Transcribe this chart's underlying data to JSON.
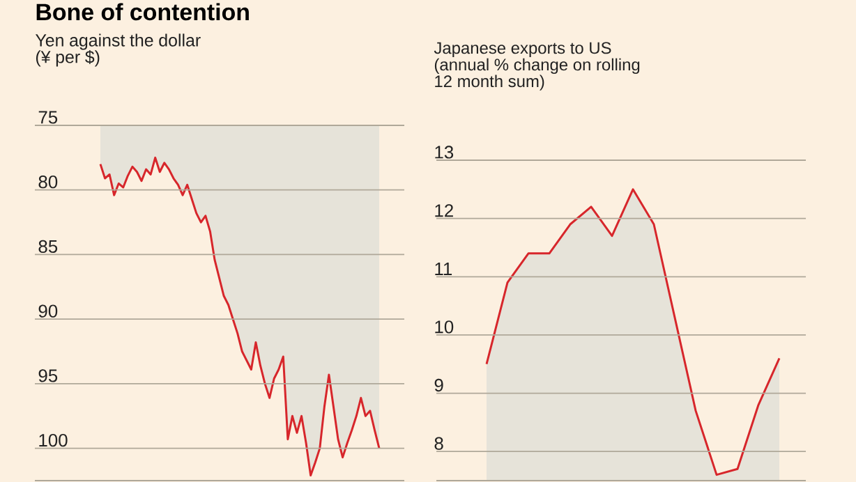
{
  "chart_data": [
    {
      "type": "area",
      "title": "Bone of contention",
      "subtitle": "Yen against the dollar (¥ per $)",
      "categories": [
        null,
        null,
        null,
        null,
        null,
        null,
        null,
        null,
        null,
        null,
        null,
        null,
        null,
        null,
        null,
        null,
        null,
        null,
        null,
        null,
        null,
        null,
        null,
        null,
        null,
        null,
        null,
        null,
        null,
        null,
        null,
        null,
        null,
        null,
        null,
        null,
        null,
        null,
        null,
        null,
        null,
        null,
        null,
        null,
        null,
        null,
        null,
        null,
        null,
        null,
        null,
        null,
        null,
        null,
        null,
        null,
        null,
        null,
        null,
        null,
        null,
        null
      ],
      "series": [
        {
          "color": "#d7262b",
          "values": [
            78.0,
            79.1,
            78.8,
            80.4,
            79.5,
            79.8,
            78.9,
            78.2,
            78.6,
            79.3,
            78.4,
            78.8,
            77.5,
            78.6,
            77.9,
            78.4,
            79.1,
            79.6,
            80.4,
            79.6,
            80.7,
            81.8,
            82.5,
            82.0,
            83.2,
            85.4,
            86.8,
            88.2,
            88.9,
            90.0,
            91.1,
            92.5,
            93.2,
            93.9,
            91.8,
            93.6,
            95.0,
            96.1,
            94.6,
            93.9,
            92.9,
            99.3,
            97.5,
            98.8,
            97.5,
            99.6,
            102.1,
            101.1,
            100.0,
            96.8,
            94.3,
            96.8,
            99.3,
            100.7,
            99.6,
            98.6,
            97.5,
            96.1,
            97.5,
            97.1,
            98.6,
            100.0
          ]
        }
      ],
      "ylim": [
        102.5,
        75
      ],
      "yticks": [
        75,
        80,
        85,
        90,
        95,
        100
      ],
      "grid": "y",
      "tick_labels": "y"
    },
    {
      "type": "area",
      "title": "Japanese exports to US (annual % change on rolling 12 month sum)",
      "categories": [
        null,
        null,
        null,
        null,
        null,
        null,
        null,
        null,
        null,
        null,
        null,
        null,
        null,
        null,
        null
      ],
      "series": [
        {
          "color": "#d7262b",
          "values": [
            9.5,
            10.9,
            11.4,
            11.4,
            11.9,
            12.2,
            11.7,
            12.5,
            11.9,
            10.3,
            8.7,
            7.6,
            7.7,
            8.8,
            9.6
          ]
        }
      ],
      "ylim": [
        7.5,
        13
      ],
      "yticks": [
        8,
        9,
        10,
        11,
        12,
        13
      ],
      "grid": "y",
      "tick_labels": "y"
    }
  ]
}
